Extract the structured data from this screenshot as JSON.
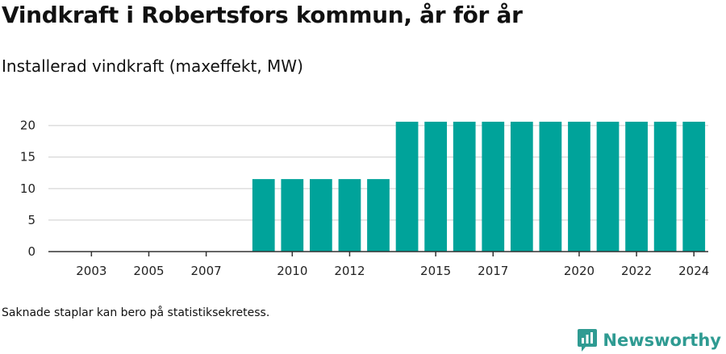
{
  "header": {
    "title": "Vindkraft i Robertsfors kommun, år för år",
    "subtitle": "Installerad vindkraft (maxeffekt, MW)"
  },
  "footer": {
    "note": "Saknade staplar kan bero på statistiksekretess.",
    "brand": "Newsworthy",
    "brand_icon": "newsworthy-logo-icon"
  },
  "colors": {
    "bar": "#00a39a",
    "grid": "#dddddd",
    "axis": "#333333",
    "brand": "#2f9b92"
  },
  "chart_data": {
    "type": "bar",
    "categories": [
      "2002",
      "2003",
      "2004",
      "2005",
      "2006",
      "2007",
      "2008",
      "2009",
      "2010",
      "2011",
      "2012",
      "2013",
      "2014",
      "2015",
      "2016",
      "2017",
      "2018",
      "2019",
      "2020",
      "2021",
      "2022",
      "2023",
      "2024"
    ],
    "values": [
      null,
      null,
      null,
      null,
      null,
      null,
      null,
      11.5,
      11.5,
      11.5,
      11.5,
      11.5,
      20.6,
      20.6,
      20.6,
      20.6,
      20.6,
      20.6,
      20.6,
      20.6,
      20.6,
      20.6,
      20.6
    ],
    "x_tick_labels": [
      "2003",
      "2005",
      "2007",
      "2010",
      "2012",
      "2015",
      "2017",
      "2020",
      "2022",
      "2024"
    ],
    "y_ticks": [
      0,
      5,
      10,
      15,
      20
    ],
    "ylim": [
      0,
      22
    ],
    "grid": true,
    "xlabel": "",
    "ylabel": ""
  }
}
